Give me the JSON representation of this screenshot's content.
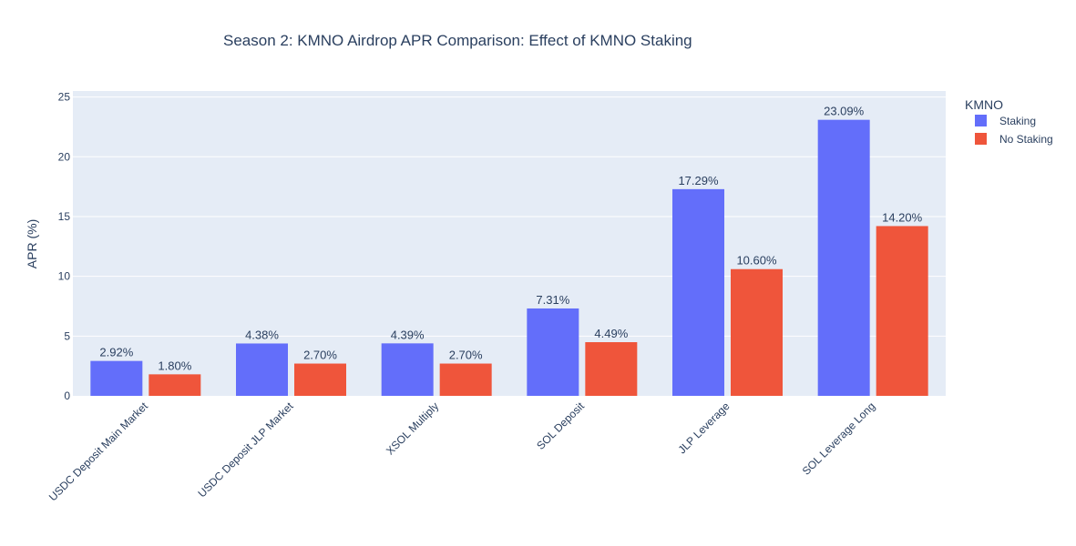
{
  "chart_data": {
    "type": "bar",
    "title": "Season 2: KMNO Airdrop APR Comparison: Effect of KMNO Staking",
    "xlabel": "",
    "ylabel": "APR (%)",
    "ylim": [
      0,
      25.5
    ],
    "yticks": [
      0,
      5,
      10,
      15,
      20,
      25
    ],
    "grid": true,
    "categories": [
      "USDC Deposit Main Market",
      "USDC Deposit JLP Market",
      "XSOL Multiply",
      "SOL Deposit",
      "JLP Leverage",
      "SOL Leverage Long"
    ],
    "legend": {
      "title": "KMNO",
      "placement": "right"
    },
    "series": [
      {
        "name": "Staking",
        "color": "#636efa",
        "values": [
          2.92,
          4.38,
          4.39,
          7.31,
          17.29,
          23.09
        ],
        "labels": [
          "2.92%",
          "4.38%",
          "4.39%",
          "7.31%",
          "17.29%",
          "23.09%"
        ]
      },
      {
        "name": "No Staking",
        "color": "#ef553b",
        "values": [
          1.8,
          2.7,
          2.7,
          4.49,
          10.6,
          14.2
        ],
        "labels": [
          "1.80%",
          "2.70%",
          "2.70%",
          "4.49%",
          "10.60%",
          "14.20%"
        ]
      }
    ]
  },
  "colors": {
    "plot_background": "#e5ecf6",
    "gridline": "#ffffff",
    "text": "#2a3f5f"
  }
}
